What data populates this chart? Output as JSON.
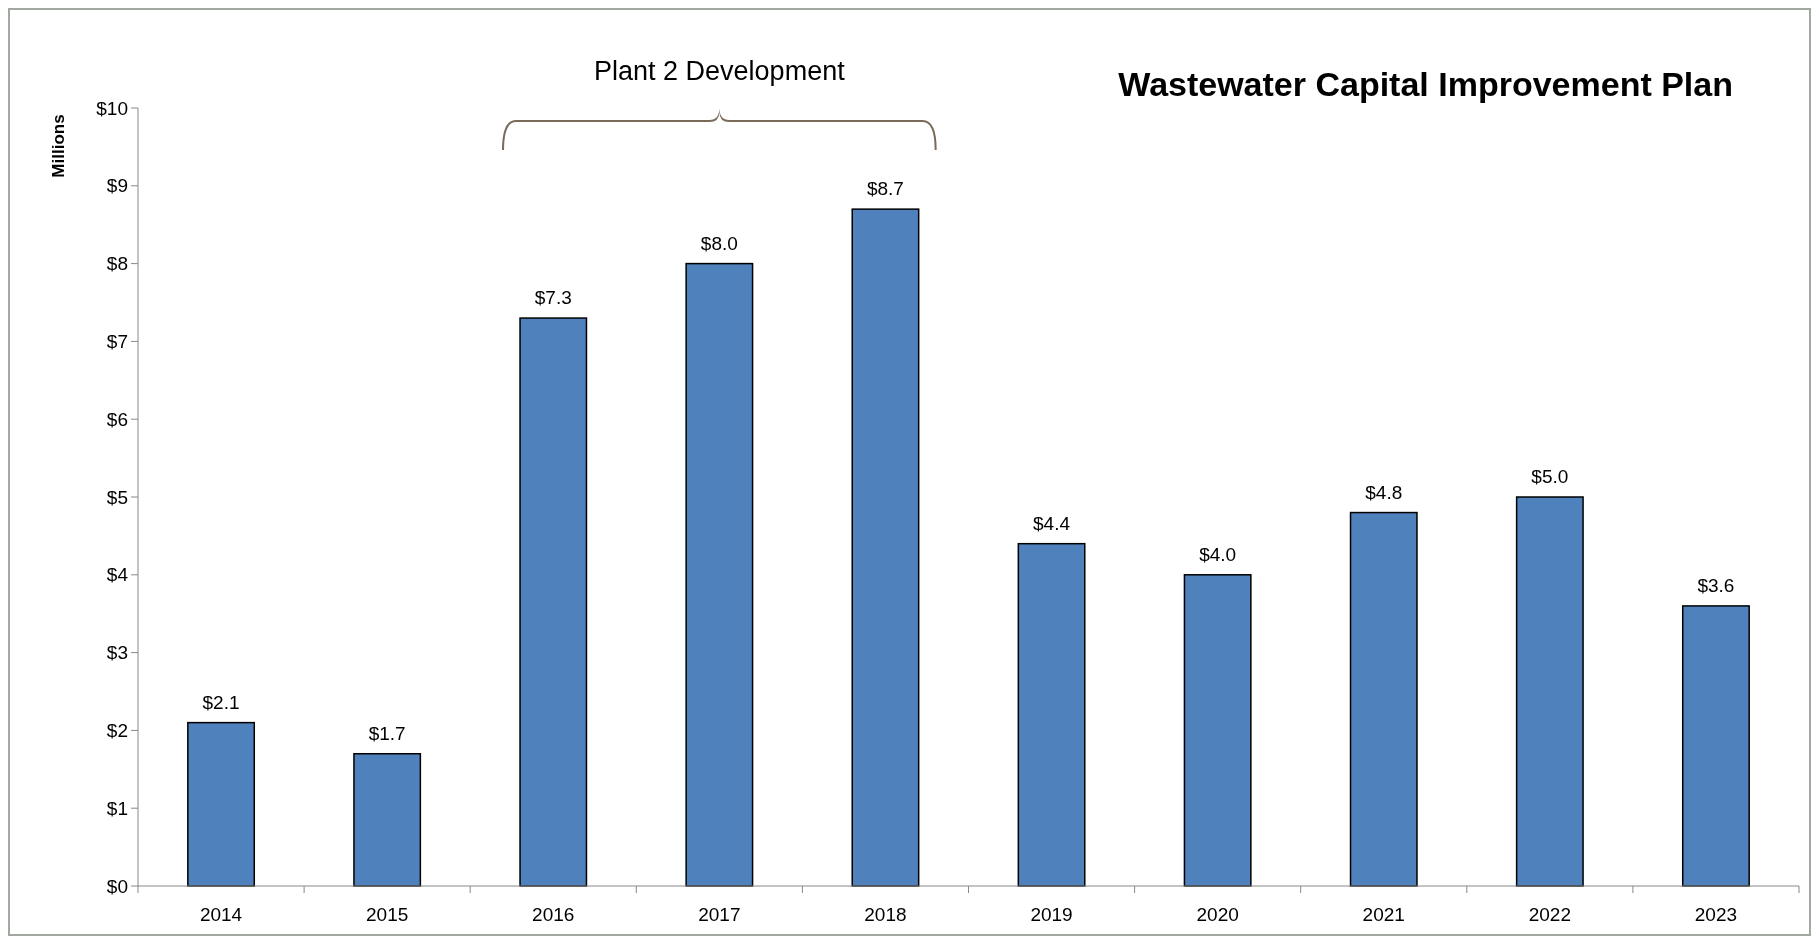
{
  "chart_data": {
    "type": "bar",
    "title": "Wastewater Capital Improvement Plan",
    "ylabel": "Millions",
    "categories": [
      "2014",
      "2015",
      "2016",
      "2017",
      "2018",
      "2019",
      "2020",
      "2021",
      "2022",
      "2023"
    ],
    "values": [
      2.1,
      1.7,
      7.3,
      8.0,
      8.7,
      4.4,
      4.0,
      4.8,
      5.0,
      3.6
    ],
    "value_labels": [
      "$2.1",
      "$1.7",
      "$7.3",
      "$8.0",
      "$8.7",
      "$4.4",
      "$4.0",
      "$4.8",
      "$5.0",
      "$3.6"
    ],
    "color": "#4f81bd",
    "ylim": [
      0,
      10
    ],
    "yticks": [
      {
        "value": 0,
        "label": "$0"
      },
      {
        "value": 1,
        "label": "$1"
      },
      {
        "value": 2,
        "label": "$2"
      },
      {
        "value": 3,
        "label": "$3"
      },
      {
        "value": 4,
        "label": "$4"
      },
      {
        "value": 5,
        "label": "$5"
      },
      {
        "value": 6,
        "label": "$6"
      },
      {
        "value": 7,
        "label": "$7"
      },
      {
        "value": 8,
        "label": "$8"
      },
      {
        "value": 9,
        "label": "$9"
      },
      {
        "value": 10,
        "label": "$10"
      }
    ],
    "grid": false,
    "annotations": [
      "Plant 2 Development"
    ]
  }
}
